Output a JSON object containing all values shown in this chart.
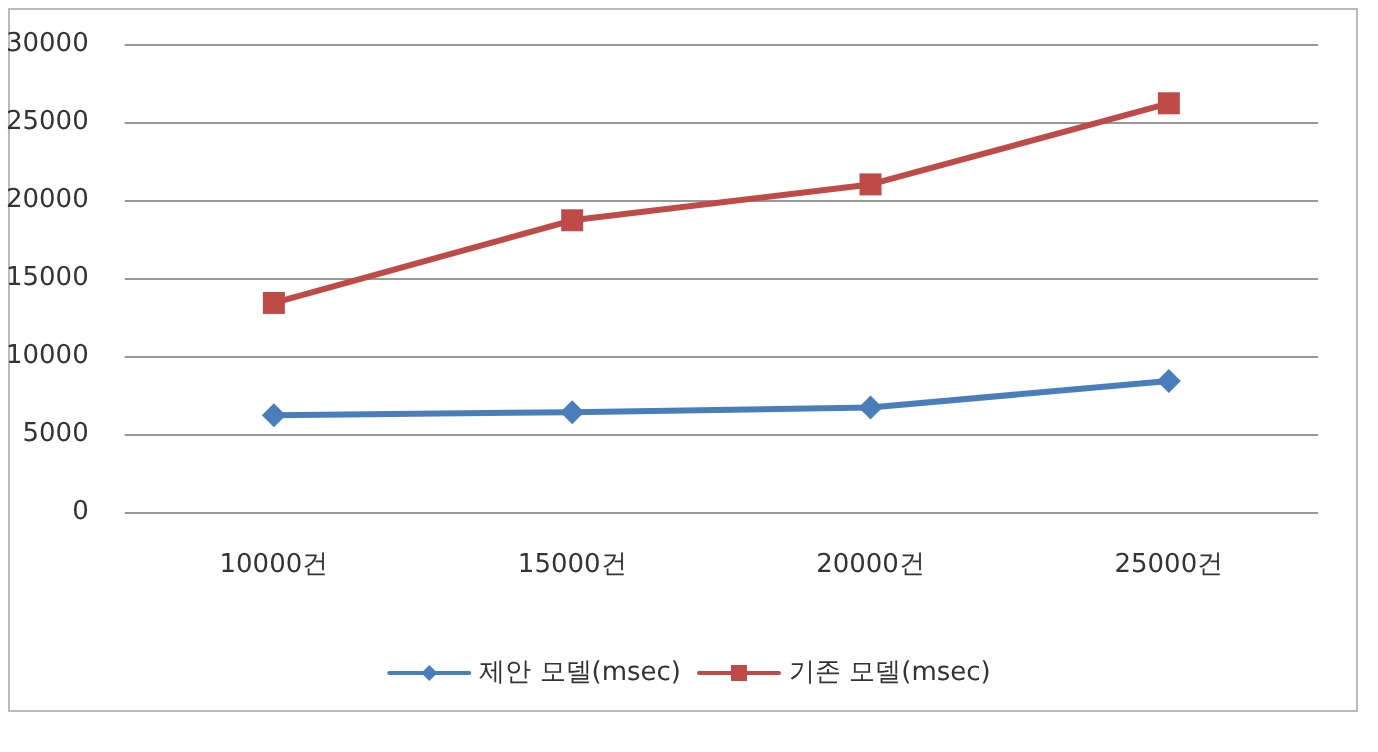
{
  "chart_data": {
    "type": "line",
    "categories": [
      "10000건",
      "15000건",
      "20000건",
      "25000건"
    ],
    "series": [
      {
        "name": "제안 모델(msec)",
        "color": "#4a7ebb",
        "marker": "diamond",
        "values": [
          6200,
          6400,
          6700,
          8400
        ]
      },
      {
        "name": "기존 모델(msec)",
        "color": "#be4b48",
        "marker": "square",
        "values": [
          13400,
          18700,
          21000,
          26200
        ]
      }
    ],
    "ylim": [
      0,
      30000
    ],
    "yticks": [
      0,
      5000,
      10000,
      15000,
      20000,
      25000,
      30000
    ],
    "grid": "y",
    "legend": "bottom",
    "line_style": "solid"
  }
}
